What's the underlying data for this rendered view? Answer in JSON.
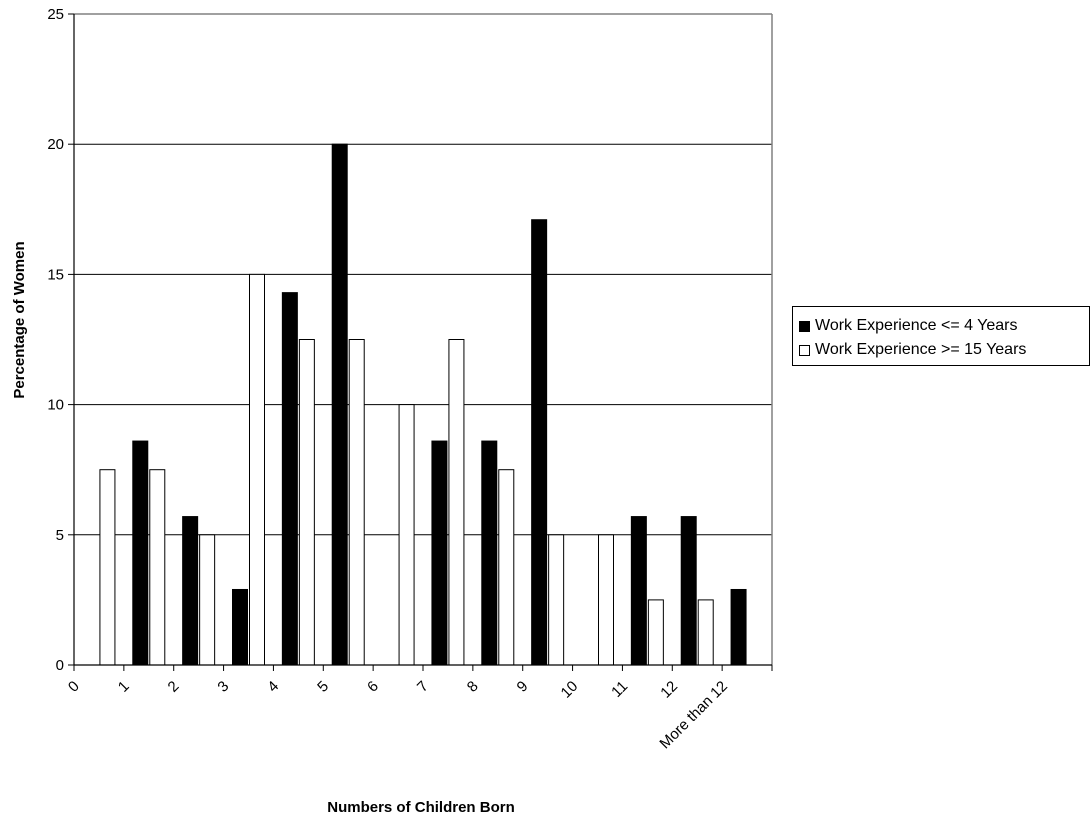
{
  "chart_data": {
    "type": "bar",
    "xlabel": "Numbers of Children Born",
    "ylabel": "Percentage of Women",
    "ylim": [
      0,
      25
    ],
    "yticks": [
      0,
      5,
      10,
      15,
      20,
      25
    ],
    "grid": true,
    "legend_position": "right",
    "categories": [
      "0",
      "1",
      "2",
      "3",
      "4",
      "5",
      "6",
      "7",
      "8",
      "9",
      "10",
      "11",
      "12",
      "More than 12"
    ],
    "series": [
      {
        "name": "Work Experience <= 4 Years",
        "color": "#000000",
        "values": [
          0,
          8.6,
          5.7,
          2.9,
          14.3,
          20.0,
          0,
          8.6,
          8.6,
          17.1,
          0,
          5.7,
          5.7,
          2.9
        ]
      },
      {
        "name": "Work Experience >= 15 Years",
        "color": "#ffffff",
        "values": [
          7.5,
          7.5,
          5.0,
          15.0,
          12.5,
          12.5,
          10.0,
          12.5,
          7.5,
          5.0,
          5.0,
          2.5,
          2.5,
          0
        ]
      }
    ]
  }
}
